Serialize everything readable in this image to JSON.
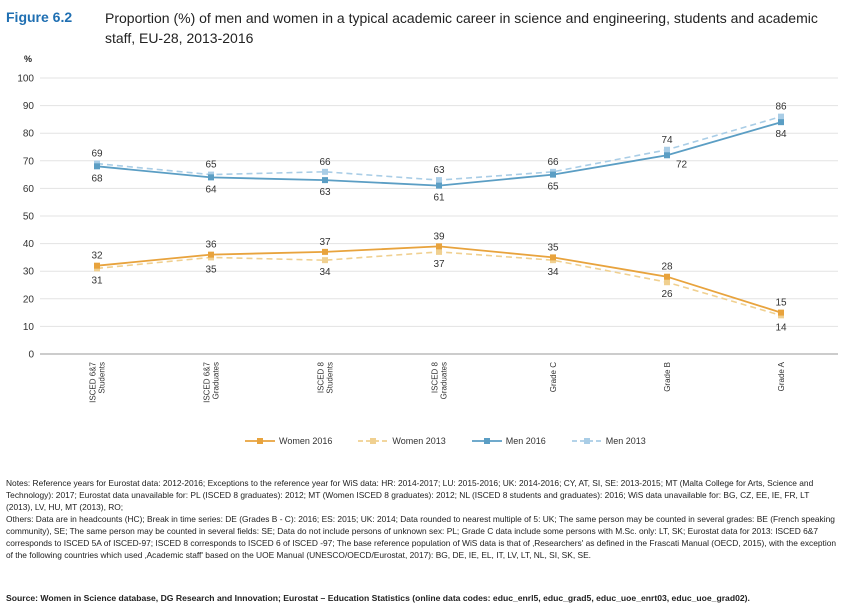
{
  "figure": {
    "label": "Figure 6.2",
    "title": "Proportion (%) of men and women in a typical academic career in science and engineering, students and academic staff, EU-28, 2013-2016"
  },
  "chart_data": {
    "type": "line",
    "ylabel": "%",
    "ylim": [
      0,
      100
    ],
    "yticks": [
      0,
      10,
      20,
      30,
      40,
      50,
      60,
      70,
      80,
      90,
      100
    ],
    "categories": [
      [
        "ISCED 6&7",
        "Students"
      ],
      [
        "ISCED 6&7",
        "Graduates"
      ],
      [
        "ISCED 8",
        "Students"
      ],
      [
        "ISCED 8",
        "Graduates"
      ],
      [
        "Grade C"
      ],
      [
        "Grade B"
      ],
      [
        "Grade A"
      ]
    ],
    "series": [
      {
        "name": "Women 2016",
        "values": [
          32,
          36,
          37,
          39,
          35,
          28,
          15
        ],
        "color": "#e8a33d",
        "dashed": false,
        "label_pos": [
          "above",
          "above",
          "above",
          "above",
          "above",
          "above",
          "above"
        ]
      },
      {
        "name": "Women 2013",
        "values": [
          31,
          35,
          34,
          37,
          34,
          26,
          14
        ],
        "color": "#f0d090",
        "dashed": true,
        "label_pos": [
          "below",
          "below",
          "below",
          "below",
          "below",
          "below",
          "below"
        ]
      },
      {
        "name": "Men 2016",
        "values": [
          68,
          64,
          63,
          61,
          65,
          72,
          84
        ],
        "color": "#5b9ec4",
        "dashed": false,
        "label_pos": [
          "below",
          "below",
          "below",
          "below",
          "below",
          "right",
          "below"
        ]
      },
      {
        "name": "Men 2013",
        "values": [
          69,
          65,
          66,
          63,
          66,
          74,
          86
        ],
        "color": "#a9cde6",
        "dashed": true,
        "label_pos": [
          "above",
          "above",
          "above",
          "above",
          "above",
          "above",
          "above"
        ]
      }
    ],
    "legend": "bottom"
  },
  "notes": [
    "Notes: Reference years for Eurostat data: 2012-2016; Exceptions to the reference year for WiS data: HR: 2014-2017; LU: 2015-2016; UK: 2014-2016; CY, AT, SI, SE: 2013-2015; MT (Malta College for Arts, Science and Technology): 2017; Eurostat data unavailable for: PL (ISCED 8 graduates): 2012; MT (Women ISCED 8 graduates): 2012; NL (ISCED 8 students and graduates): 2016; WiS data unavailable for: BG, CZ, EE, IE, FR, LT (2013), LV, HU, MT (2013), RO;",
    "Others: Data are in headcounts (HC); Break in time series: DE (Grades B - C): 2016; ES: 2015; UK: 2014; Data rounded to nearest multiple of 5: UK; The same person may be counted in several grades: BE (French speaking community), SE; The same person may be counted in several fields: SE; Data do not include persons of unknown sex: PL; Grade C data include some persons with M.Sc. only: LT, SK; Eurostat data for 2013: ISCED 6&7 corresponds to ISCED 5A of ISCED-97; ISCED 8 corresponds to ISCED 6 of ISCED -97; The base reference population of WiS data is that of ‚Researchers' as defined in the Frascati Manual (OECD, 2015), with the exception of the following countries which used ‚Academic staff' based on the UOE Manual (UNESCO/OECD/Eurostat, 2017): BG, DE, IE, EL, IT, LV, LT, NL, SI, SK, SE."
  ],
  "source": "Source: Women in Science database, DG Research and Innovation; Eurostat – Education Statistics (online data codes: educ_enrl5, educ_grad5, educ_uoe_enrt03, educ_uoe_grad02)."
}
